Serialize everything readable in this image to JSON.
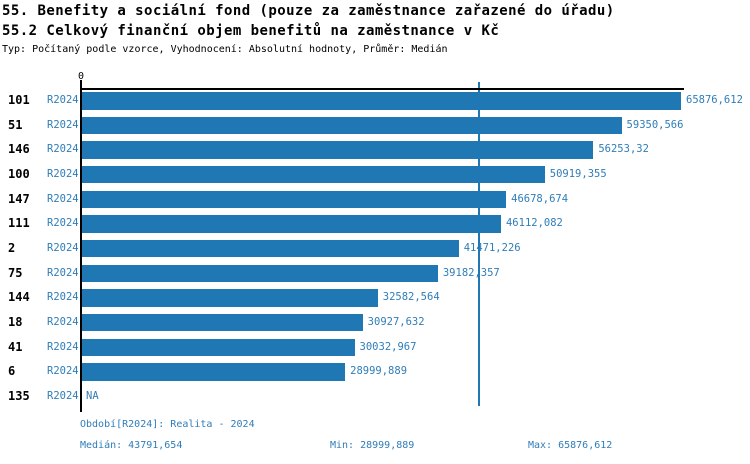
{
  "header": {
    "title_line1": "55. Benefity a sociální fond (pouze za zaměstnance zařazené do úřadu)",
    "title_line2": "55.2 Celkový finanční objem benefitů na zaměstnance v Kč",
    "subtitle": "Typ: Počítaný podle vzorce, Vyhodnocení: Absolutní hodnoty, Průměr: Medián"
  },
  "chart_data": {
    "type": "bar",
    "orientation": "horizontal",
    "title": "55.2 Celkový finanční objem benefitů na zaměstnance v Kč",
    "period_label": "R2024",
    "categories": [
      "101",
      "51",
      "146",
      "100",
      "147",
      "111",
      "2",
      "75",
      "144",
      "18",
      "41",
      "6",
      "135"
    ],
    "values": [
      65876.612,
      59350.566,
      56253.32,
      50919.355,
      46678.674,
      46112.082,
      41471.226,
      39182.357,
      32582.564,
      30927.632,
      30032.967,
      28999.889,
      null
    ],
    "value_labels": [
      "65876,612",
      "59350,566",
      "56253,32",
      "50919,355",
      "46678,674",
      "46112,082",
      "41471,226",
      "39182,357",
      "32582,564",
      "30927,632",
      "30032,967",
      "28999,889",
      "NA"
    ],
    "x_axis": {
      "zero_label": "0",
      "min": 0,
      "max": 65876.612
    },
    "median_value": 43791.654,
    "grid": "median-reference-line-only",
    "legend": "none",
    "bar_color": "#1f77b4",
    "text_color": "#2f7db9"
  },
  "footer": {
    "period": "Období[R2024]: Realita - 2024",
    "median": "Medián: 43791,654",
    "min": "Min: 28999,889",
    "max": "Max: 65876,612"
  }
}
